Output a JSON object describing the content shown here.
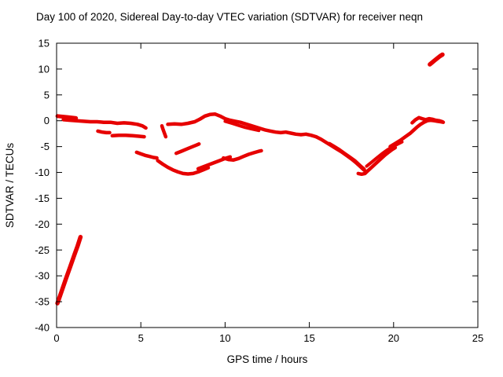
{
  "chart_data": {
    "type": "scatter",
    "title": "Day 100 of 2020, Sidereal Day-to-day VTEC variation (SDTVAR) for receiver neqn",
    "xlabel": "GPS time / hours",
    "ylabel": "SDTVAR / TECUs",
    "xlim": [
      0,
      25
    ],
    "ylim": [
      -40,
      15
    ],
    "x_ticks": [
      0,
      5,
      10,
      15,
      20,
      25
    ],
    "y_ticks": [
      -40,
      -35,
      -30,
      -25,
      -20,
      -15,
      -10,
      -5,
      0,
      5,
      10,
      15
    ],
    "grid": false,
    "legend": "none",
    "background_color": "#ffffff",
    "frame_color": "#000000",
    "series_color": "#e60000",
    "series": [
      {
        "name": "steep-segment-lower-left",
        "lw": 5.5,
        "points": [
          [
            0.05,
            -35.3
          ],
          [
            0.3,
            -33.0
          ],
          [
            0.55,
            -30.6
          ],
          [
            0.8,
            -28.3
          ],
          [
            1.05,
            -26.0
          ],
          [
            1.25,
            -24.2
          ],
          [
            1.42,
            -22.5
          ]
        ]
      },
      {
        "name": "early-high-band",
        "lw": 5,
        "points": [
          [
            0.05,
            0.9
          ],
          [
            0.35,
            0.8
          ],
          [
            0.65,
            0.7
          ],
          [
            0.95,
            0.6
          ],
          [
            1.15,
            0.5
          ]
        ]
      },
      {
        "name": "zero-band-early",
        "lw": 4.5,
        "points": [
          [
            0.4,
            0.2
          ],
          [
            0.8,
            0.1
          ],
          [
            1.2,
            0.0
          ],
          [
            1.6,
            -0.1
          ],
          [
            2.0,
            -0.2
          ],
          [
            2.4,
            -0.2
          ],
          [
            2.8,
            -0.3
          ],
          [
            3.2,
            -0.3
          ],
          [
            3.6,
            -0.5
          ],
          [
            4.0,
            -0.4
          ],
          [
            4.4,
            -0.5
          ],
          [
            4.8,
            -0.7
          ],
          [
            5.1,
            -1.0
          ],
          [
            5.3,
            -1.4
          ]
        ]
      },
      {
        "name": "minus2-blob",
        "lw": 4.5,
        "points": [
          [
            2.45,
            -2.0
          ],
          [
            2.7,
            -2.2
          ],
          [
            2.95,
            -2.3
          ],
          [
            3.15,
            -2.3
          ]
        ]
      },
      {
        "name": "minus3-band",
        "lw": 4.5,
        "points": [
          [
            3.3,
            -2.9
          ],
          [
            3.7,
            -2.8
          ],
          [
            4.1,
            -2.8
          ],
          [
            4.5,
            -2.9
          ],
          [
            4.9,
            -3.0
          ],
          [
            5.2,
            -3.1
          ]
        ]
      },
      {
        "name": "short-steep-drop",
        "lw": 4.5,
        "points": [
          [
            6.25,
            -1.0
          ],
          [
            6.32,
            -1.7
          ],
          [
            6.4,
            -2.4
          ],
          [
            6.48,
            -3.1
          ]
        ]
      },
      {
        "name": "arc-minus6",
        "lw": 4.5,
        "points": [
          [
            4.75,
            -6.1
          ],
          [
            5.0,
            -6.4
          ],
          [
            5.25,
            -6.7
          ],
          [
            5.5,
            -6.9
          ],
          [
            5.75,
            -7.1
          ],
          [
            5.95,
            -7.2
          ]
        ]
      },
      {
        "name": "deep-dip-minus10",
        "lw": 4.5,
        "points": [
          [
            6.0,
            -7.7
          ],
          [
            6.3,
            -8.4
          ],
          [
            6.6,
            -9.0
          ],
          [
            6.9,
            -9.5
          ],
          [
            7.2,
            -9.9
          ],
          [
            7.5,
            -10.2
          ],
          [
            7.8,
            -10.3
          ],
          [
            8.1,
            -10.2
          ],
          [
            8.4,
            -9.9
          ],
          [
            8.7,
            -9.5
          ],
          [
            9.0,
            -9.1
          ]
        ]
      },
      {
        "name": "rising-mid-curve",
        "lw": 4.5,
        "points": [
          [
            8.4,
            -9.3
          ],
          [
            8.8,
            -8.8
          ],
          [
            9.2,
            -8.3
          ],
          [
            9.6,
            -7.8
          ],
          [
            10.0,
            -7.3
          ],
          [
            10.3,
            -7.0
          ]
        ]
      },
      {
        "name": "rise-to-minus4",
        "lw": 4.5,
        "points": [
          [
            7.1,
            -6.3
          ],
          [
            7.4,
            -5.9
          ],
          [
            7.7,
            -5.5
          ],
          [
            8.0,
            -5.1
          ],
          [
            8.3,
            -4.7
          ],
          [
            8.45,
            -4.5
          ]
        ]
      },
      {
        "name": "hook-10-12",
        "lw": 4.5,
        "points": [
          [
            9.9,
            -7.2
          ],
          [
            10.2,
            -7.5
          ],
          [
            10.5,
            -7.6
          ],
          [
            10.8,
            -7.3
          ],
          [
            11.1,
            -6.9
          ],
          [
            11.4,
            -6.5
          ],
          [
            11.7,
            -6.2
          ],
          [
            12.0,
            -5.9
          ],
          [
            12.15,
            -5.8
          ]
        ]
      },
      {
        "name": "main-central-band",
        "lw": 4.5,
        "points": [
          [
            6.6,
            -0.7
          ],
          [
            7.0,
            -0.6
          ],
          [
            7.4,
            -0.7
          ],
          [
            7.8,
            -0.5
          ],
          [
            8.2,
            -0.2
          ],
          [
            8.5,
            0.3
          ],
          [
            8.8,
            0.9
          ],
          [
            9.1,
            1.2
          ],
          [
            9.4,
            1.3
          ],
          [
            9.7,
            0.9
          ],
          [
            10.0,
            0.4
          ],
          [
            10.3,
            0.1
          ],
          [
            10.6,
            -0.1
          ],
          [
            10.9,
            -0.3
          ],
          [
            11.2,
            -0.6
          ],
          [
            11.5,
            -0.9
          ],
          [
            11.8,
            -1.2
          ],
          [
            12.1,
            -1.5
          ],
          [
            12.4,
            -1.8
          ],
          [
            12.7,
            -2.0
          ],
          [
            13.0,
            -2.2
          ],
          [
            13.3,
            -2.3
          ],
          [
            13.6,
            -2.2
          ],
          [
            13.9,
            -2.4
          ],
          [
            14.2,
            -2.6
          ],
          [
            14.5,
            -2.7
          ],
          [
            14.8,
            -2.6
          ],
          [
            15.1,
            -2.8
          ],
          [
            15.4,
            -3.1
          ]
        ]
      },
      {
        "name": "central-band-parallel",
        "lw": 4,
        "points": [
          [
            10.0,
            -0.1
          ],
          [
            10.4,
            -0.5
          ],
          [
            10.8,
            -0.9
          ],
          [
            11.2,
            -1.3
          ],
          [
            11.6,
            -1.6
          ],
          [
            12.0,
            -1.9
          ]
        ]
      },
      {
        "name": "descent-15-18",
        "lw": 4.5,
        "points": [
          [
            15.4,
            -3.1
          ],
          [
            15.7,
            -3.6
          ],
          [
            16.0,
            -4.2
          ],
          [
            16.3,
            -4.8
          ],
          [
            16.6,
            -5.4
          ],
          [
            16.9,
            -6.0
          ],
          [
            17.2,
            -6.7
          ],
          [
            17.5,
            -7.4
          ],
          [
            17.8,
            -8.2
          ],
          [
            18.0,
            -8.8
          ],
          [
            18.2,
            -9.4
          ],
          [
            18.35,
            -9.8
          ]
        ]
      },
      {
        "name": "descent-parallel",
        "lw": 4,
        "points": [
          [
            16.2,
            -4.4
          ],
          [
            16.5,
            -5.0
          ],
          [
            16.8,
            -5.6
          ],
          [
            17.1,
            -6.3
          ],
          [
            17.4,
            -7.0
          ],
          [
            17.7,
            -7.7
          ],
          [
            17.9,
            -8.3
          ],
          [
            18.1,
            -8.9
          ],
          [
            18.25,
            -9.3
          ]
        ]
      },
      {
        "name": "minimum-and-rise",
        "lw": 4.5,
        "points": [
          [
            17.9,
            -10.2
          ],
          [
            18.1,
            -10.35
          ],
          [
            18.3,
            -10.2
          ],
          [
            18.5,
            -9.6
          ],
          [
            18.7,
            -9.0
          ],
          [
            18.9,
            -8.4
          ],
          [
            19.1,
            -7.8
          ],
          [
            19.3,
            -7.2
          ],
          [
            19.5,
            -6.6
          ],
          [
            19.7,
            -6.1
          ],
          [
            19.9,
            -5.6
          ],
          [
            20.1,
            -5.2
          ]
        ]
      },
      {
        "name": "rise-branch",
        "lw": 4,
        "points": [
          [
            18.4,
            -8.8
          ],
          [
            18.7,
            -8.0
          ],
          [
            19.0,
            -7.2
          ],
          [
            19.3,
            -6.4
          ],
          [
            19.6,
            -5.7
          ],
          [
            19.9,
            -5.1
          ],
          [
            20.2,
            -4.6
          ],
          [
            20.5,
            -4.1
          ]
        ]
      },
      {
        "name": "final-rise-to-zero",
        "lw": 4.5,
        "points": [
          [
            19.8,
            -5.0
          ],
          [
            20.1,
            -4.4
          ],
          [
            20.4,
            -3.8
          ],
          [
            20.7,
            -3.1
          ],
          [
            21.0,
            -2.4
          ],
          [
            21.2,
            -1.8
          ],
          [
            21.4,
            -1.2
          ],
          [
            21.6,
            -0.7
          ],
          [
            21.8,
            -0.3
          ],
          [
            22.0,
            0.0
          ],
          [
            22.2,
            0.1
          ],
          [
            22.4,
            0.0
          ],
          [
            22.6,
            -0.1
          ],
          [
            22.8,
            -0.2
          ],
          [
            22.95,
            -0.3
          ]
        ]
      },
      {
        "name": "end-zero-band",
        "lw": 4.5,
        "points": [
          [
            21.1,
            -0.4
          ],
          [
            21.3,
            0.2
          ],
          [
            21.5,
            0.6
          ],
          [
            21.7,
            0.4
          ],
          [
            21.9,
            0.2
          ],
          [
            22.1,
            0.4
          ],
          [
            22.3,
            0.3
          ],
          [
            22.5,
            0.1
          ],
          [
            22.7,
            0.0
          ],
          [
            22.9,
            -0.2
          ]
        ]
      },
      {
        "name": "top-right-segment",
        "lw": 5.5,
        "points": [
          [
            22.15,
            10.9
          ],
          [
            22.3,
            11.3
          ],
          [
            22.45,
            11.7
          ],
          [
            22.6,
            12.1
          ],
          [
            22.75,
            12.5
          ],
          [
            22.9,
            12.8
          ]
        ]
      }
    ]
  }
}
